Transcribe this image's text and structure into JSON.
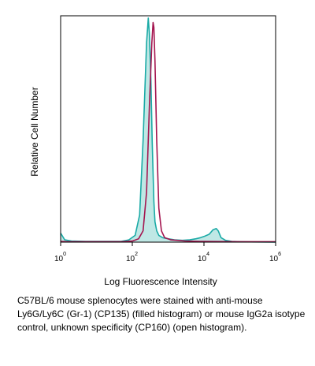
{
  "chart_data": {
    "type": "area",
    "title": "",
    "xlabel": "Log Fluorescence Intensity",
    "ylabel": "Relative Cell Number",
    "x_scale": "log",
    "xlim": [
      1,
      1000000
    ],
    "ylim": [
      0,
      100
    ],
    "grid": false,
    "legend": "none",
    "x_ticks": [
      {
        "base": "10",
        "exp": "0",
        "value": 1
      },
      {
        "base": "10",
        "exp": "2",
        "value": 100
      },
      {
        "base": "10",
        "exp": "4",
        "value": 10000
      },
      {
        "base": "10",
        "exp": "6",
        "value": 1000000
      }
    ],
    "series": [
      {
        "style": "filled",
        "color": "#1aaaa6",
        "fill": "#bfe8e5",
        "x": [
          1,
          1.3,
          2,
          5,
          10,
          20,
          50,
          80,
          120,
          160,
          200,
          250,
          280,
          300,
          330,
          360,
          400,
          430,
          480,
          550,
          700,
          1000,
          1500,
          2500,
          4000,
          6000,
          8000,
          10000,
          14000,
          18000,
          22000,
          25000,
          30000,
          40000,
          60000,
          100000,
          200000,
          1000000
        ],
        "y": [
          4,
          1,
          0.5,
          0.3,
          0.3,
          0.3,
          0.4,
          1,
          3,
          12,
          45,
          88,
          99,
          92,
          72,
          44,
          18,
          9,
          5,
          3,
          2,
          1.5,
          1,
          0.8,
          1,
          1.5,
          2,
          2.5,
          3.5,
          5.5,
          6,
          5,
          2,
          0.8,
          0.3,
          0.2,
          0.1,
          0
        ]
      },
      {
        "style": "open",
        "color": "#a4154f",
        "x": [
          1,
          1.5,
          3,
          10,
          50,
          100,
          150,
          200,
          250,
          300,
          350,
          380,
          400,
          430,
          480,
          550,
          650,
          800,
          1200,
          3000,
          10000,
          100000,
          1000000
        ],
        "y": [
          0.3,
          0.2,
          0.2,
          0.2,
          0.2,
          0.5,
          1.5,
          5,
          22,
          60,
          88,
          97,
          95,
          80,
          45,
          15,
          5,
          2,
          1,
          0.5,
          0.3,
          0.2,
          0.2
        ]
      }
    ]
  },
  "caption": "C57BL/6 mouse splenocytes were stained with anti-mouse Ly6G/Ly6C (Gr-1) (CP135) (filled histogram) or mouse IgG2a isotype control, unknown specificity (CP160) (open histogram)."
}
